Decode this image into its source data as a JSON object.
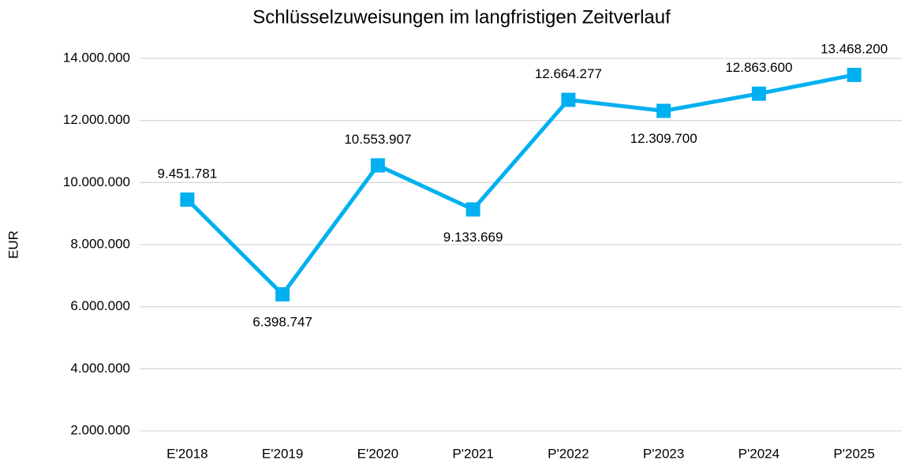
{
  "chart_data": {
    "type": "line",
    "title": "Schlüsselzuweisungen im langfristigen Zeitverlauf",
    "y_label": "EUR",
    "categories": [
      "E'2018",
      "E'2019",
      "E'2020",
      "P'2021",
      "P'2022",
      "P'2023",
      "P'2024",
      "P'2025"
    ],
    "values": [
      9451781,
      6398747,
      10553907,
      9133669,
      12664277,
      12309700,
      12863600,
      13468200
    ],
    "value_labels": [
      "9.451.781",
      "6.398.747",
      "10.553.907",
      "9.133.669",
      "12.664.277",
      "12.309.700",
      "12.863.600",
      "13.468.200"
    ],
    "color": "#00b0f0",
    "ylim": [
      2000000,
      14000000
    ],
    "yticks": [
      {
        "value": 2000000,
        "label": "2.000.000"
      },
      {
        "value": 4000000,
        "label": "4.000.000"
      },
      {
        "value": 6000000,
        "label": "6.000.000"
      },
      {
        "value": 8000000,
        "label": "8.000.000"
      },
      {
        "value": 10000000,
        "label": "10.000.000"
      },
      {
        "value": 12000000,
        "label": "12.000.000"
      },
      {
        "value": 14000000,
        "label": "14.000.000"
      }
    ],
    "grid": true
  }
}
